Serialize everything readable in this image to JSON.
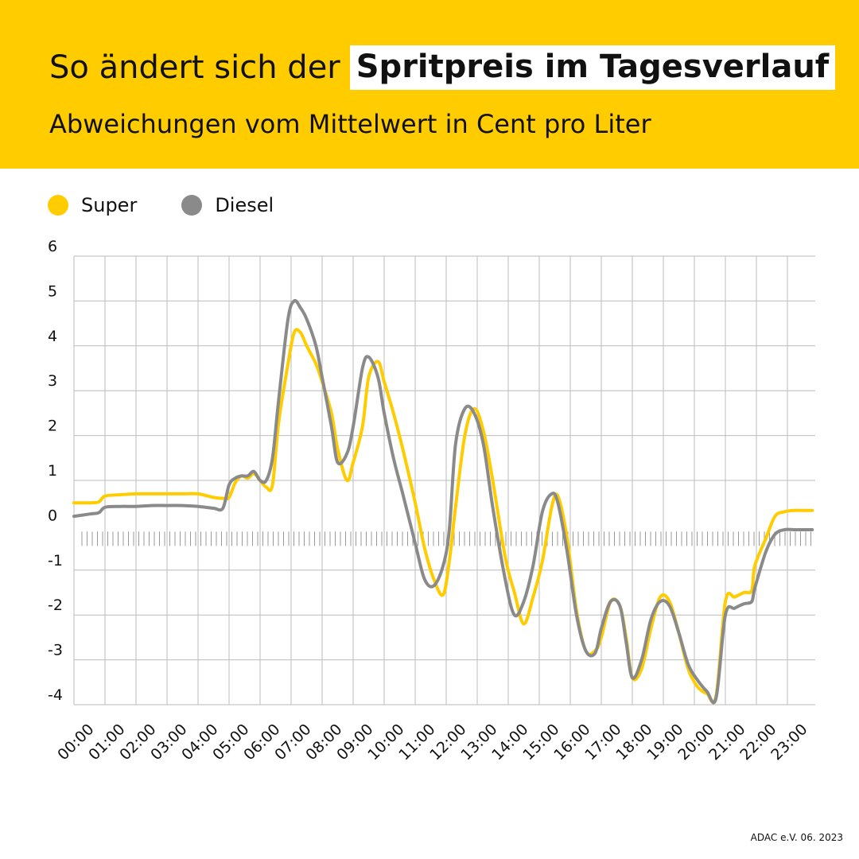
{
  "header": {
    "title_plain": "So ändert sich der",
    "title_highlight": "Spritpreis im Tagesverlauf",
    "subtitle": "Abweichungen vom Mittelwert in Cent pro Liter"
  },
  "legend": [
    {
      "label": "Super",
      "color": "#ffcc00"
    },
    {
      "label": "Diesel",
      "color": "#8a8a8a"
    }
  ],
  "footer": {
    "source": "ADAC e.V. 06. 2023"
  },
  "colors": {
    "brand_yellow": "#ffcc00",
    "super": "#ffcc00",
    "diesel": "#8a8a8a",
    "grid": "#bbbbbb"
  },
  "chart_data": {
    "type": "line",
    "title": "So ändert sich der Spritpreis im Tagesverlauf",
    "subtitle": "Abweichungen vom Mittelwert in Cent pro Liter",
    "xlabel": "",
    "ylabel": "",
    "ylim": [
      -4,
      6
    ],
    "xlim": [
      0,
      23.9
    ],
    "yticks": [
      -4,
      -3,
      -2,
      -1,
      0,
      1,
      2,
      3,
      4,
      5,
      6
    ],
    "xticks": [
      "00:00",
      "01:00",
      "02:00",
      "03:00",
      "04:00",
      "05:00",
      "06:00",
      "07:00",
      "08:00",
      "09:00",
      "10:00",
      "11:00",
      "12:00",
      "13:00",
      "14:00",
      "15:00",
      "16:00",
      "17:00",
      "18:00",
      "19:00",
      "20:00",
      "21:00",
      "22:00",
      "23:00"
    ],
    "grid": true,
    "legend_position": "top-left",
    "series": [
      {
        "name": "Super",
        "color": "#ffcc00",
        "x": [
          0,
          0.5,
          0.8,
          1,
          1.5,
          2,
          2.5,
          3,
          3.5,
          4,
          4.5,
          4.8,
          5,
          5.2,
          5.4,
          5.6,
          5.8,
          6,
          6.2,
          6.4,
          6.6,
          6.9,
          7.1,
          7.3,
          7.5,
          7.8,
          8,
          8.3,
          8.5,
          8.8,
          9,
          9.3,
          9.5,
          9.8,
          10,
          10.3,
          10.6,
          11,
          11.3,
          11.6,
          11.9,
          12.1,
          12.3,
          12.6,
          12.9,
          13.2,
          13.5,
          13.9,
          14.2,
          14.5,
          14.8,
          15.1,
          15.4,
          15.6,
          15.9,
          16.2,
          16.5,
          16.8,
          17,
          17.3,
          17.6,
          17.8,
          18,
          18.3,
          18.6,
          18.9,
          19.2,
          19.5,
          19.8,
          20.1,
          20.4,
          20.7,
          21,
          21.3,
          21.6,
          21.85,
          21.95,
          22.3,
          22.6,
          22.9,
          23.2,
          23.5,
          23.8
        ],
        "values": [
          0.5,
          0.5,
          0.52,
          0.65,
          0.68,
          0.7,
          0.7,
          0.7,
          0.7,
          0.7,
          0.62,
          0.6,
          0.62,
          0.95,
          1.1,
          1.05,
          1.15,
          1.0,
          0.85,
          0.9,
          2.3,
          3.6,
          4.3,
          4.3,
          4.0,
          3.6,
          3.2,
          2.5,
          1.7,
          1.0,
          1.4,
          2.2,
          3.3,
          3.65,
          3.2,
          2.5,
          1.7,
          0.5,
          -0.5,
          -1.2,
          -1.55,
          -0.8,
          0.4,
          2.0,
          2.6,
          2.1,
          1.0,
          -0.7,
          -1.5,
          -2.2,
          -1.6,
          -0.8,
          0.4,
          0.65,
          -0.3,
          -1.9,
          -2.8,
          -2.8,
          -2.5,
          -1.7,
          -1.8,
          -2.5,
          -3.4,
          -3.2,
          -2.3,
          -1.6,
          -1.7,
          -2.4,
          -3.2,
          -3.6,
          -3.75,
          -3.8,
          -1.7,
          -1.6,
          -1.5,
          -1.45,
          -0.9,
          -0.3,
          0.2,
          0.3,
          0.33,
          0.33,
          0.33
        ]
      },
      {
        "name": "Diesel",
        "color": "#8a8a8a",
        "x": [
          0,
          0.5,
          0.8,
          1,
          1.5,
          2,
          2.5,
          3,
          3.5,
          4,
          4.5,
          4.8,
          5,
          5.2,
          5.4,
          5.6,
          5.8,
          6,
          6.2,
          6.4,
          6.6,
          6.9,
          7.1,
          7.3,
          7.5,
          7.8,
          8,
          8.3,
          8.5,
          8.8,
          9,
          9.3,
          9.5,
          9.8,
          10,
          10.3,
          10.6,
          11,
          11.3,
          11.6,
          11.9,
          12.1,
          12.3,
          12.6,
          12.9,
          13.2,
          13.5,
          13.9,
          14.2,
          14.5,
          14.8,
          15.1,
          15.4,
          15.6,
          15.9,
          16.2,
          16.5,
          16.8,
          17,
          17.3,
          17.6,
          17.8,
          18,
          18.3,
          18.6,
          18.9,
          19.2,
          19.5,
          19.8,
          20.1,
          20.4,
          20.7,
          21,
          21.3,
          21.6,
          21.85,
          21.95,
          22.3,
          22.6,
          22.9,
          23.2,
          23.5,
          23.8
        ],
        "values": [
          0.2,
          0.25,
          0.28,
          0.4,
          0.42,
          0.42,
          0.44,
          0.44,
          0.44,
          0.42,
          0.38,
          0.38,
          0.9,
          1.05,
          1.1,
          1.1,
          1.2,
          1.0,
          1.0,
          1.5,
          2.8,
          4.6,
          5.0,
          4.85,
          4.6,
          4.0,
          3.3,
          2.2,
          1.4,
          1.6,
          2.2,
          3.5,
          3.75,
          3.3,
          2.5,
          1.5,
          0.7,
          -0.4,
          -1.2,
          -1.35,
          -0.9,
          -0.1,
          1.8,
          2.6,
          2.5,
          1.8,
          0.4,
          -1.2,
          -2.0,
          -1.7,
          -0.9,
          0.3,
          0.7,
          0.5,
          -0.6,
          -2.0,
          -2.8,
          -2.85,
          -2.3,
          -1.7,
          -1.8,
          -2.6,
          -3.4,
          -3.0,
          -2.1,
          -1.7,
          -1.8,
          -2.4,
          -3.1,
          -3.45,
          -3.7,
          -3.85,
          -2.0,
          -1.85,
          -1.75,
          -1.7,
          -1.4,
          -0.6,
          -0.2,
          -0.1,
          -0.1,
          -0.1,
          -0.1
        ]
      }
    ]
  }
}
